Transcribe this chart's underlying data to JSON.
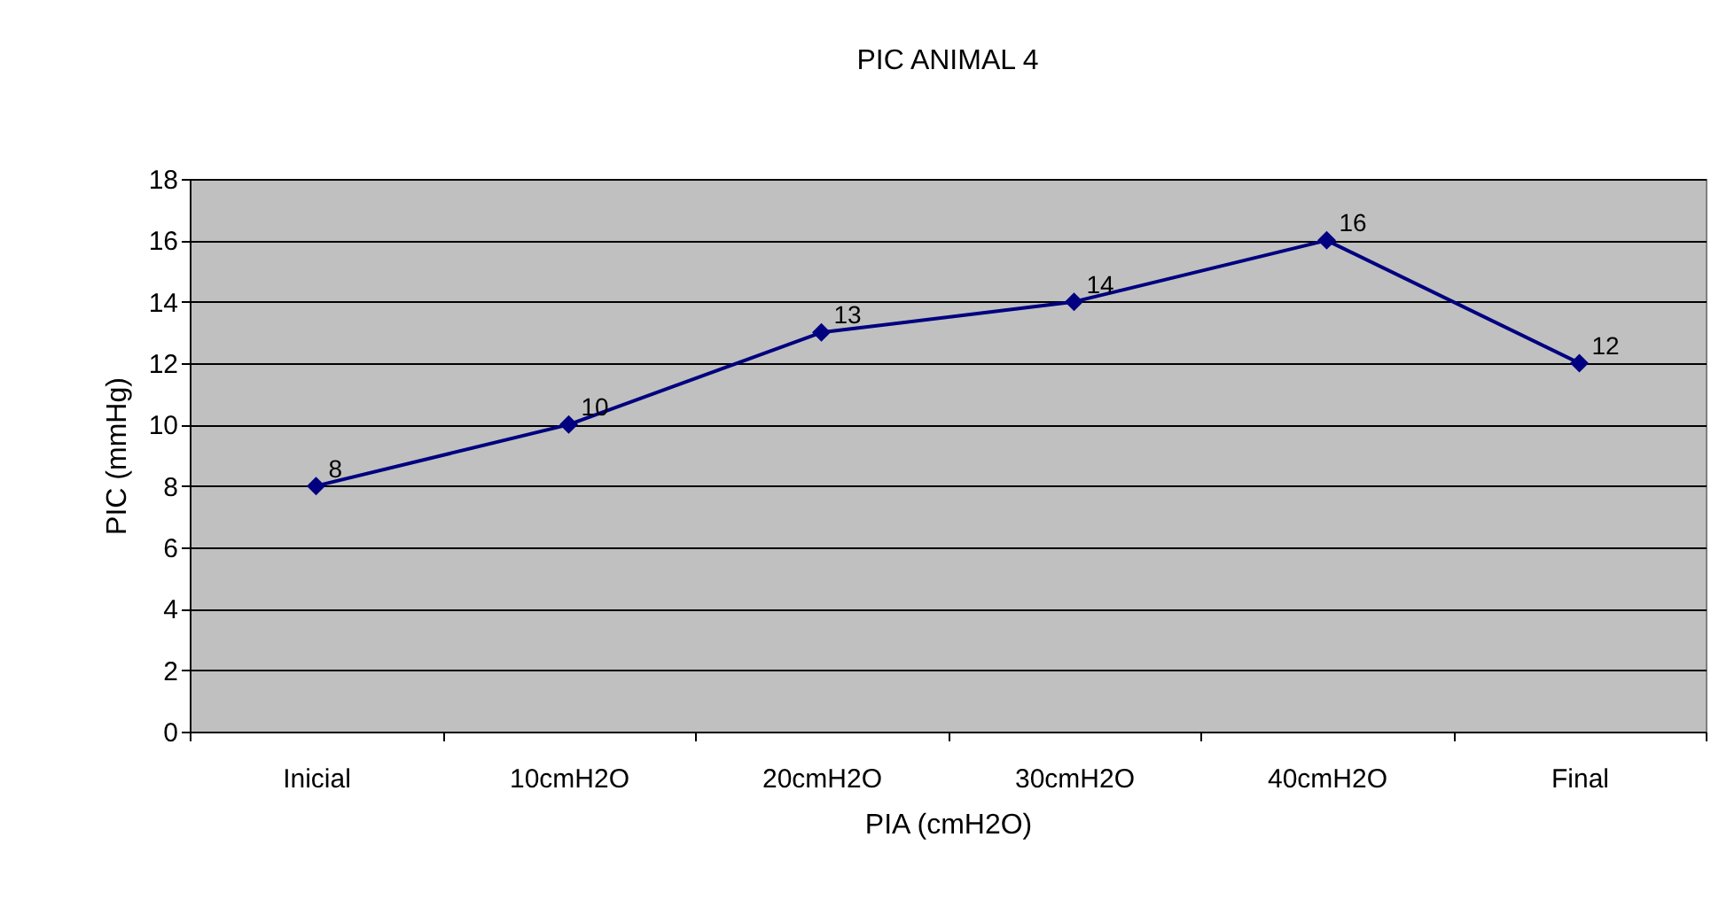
{
  "chart_data": {
    "type": "line",
    "title": "PIC  ANIMAL  4",
    "xlabel": "PIA  (cmH2O)",
    "ylabel": "PIC  (mmHg)",
    "categories": [
      "Inicial",
      "10cmH2O",
      "20cmH2O",
      "30cmH2O",
      "40cmH2O",
      "Final"
    ],
    "series": [
      {
        "color": "#000080",
        "values": [
          8,
          10,
          13,
          14,
          16,
          12
        ]
      }
    ],
    "ylim": [
      0,
      18
    ],
    "yticks": [
      0,
      2,
      4,
      6,
      8,
      10,
      12,
      14,
      16,
      18
    ],
    "grid": "y",
    "marker": "diamond",
    "line_style": "solid",
    "data_labels": true
  }
}
